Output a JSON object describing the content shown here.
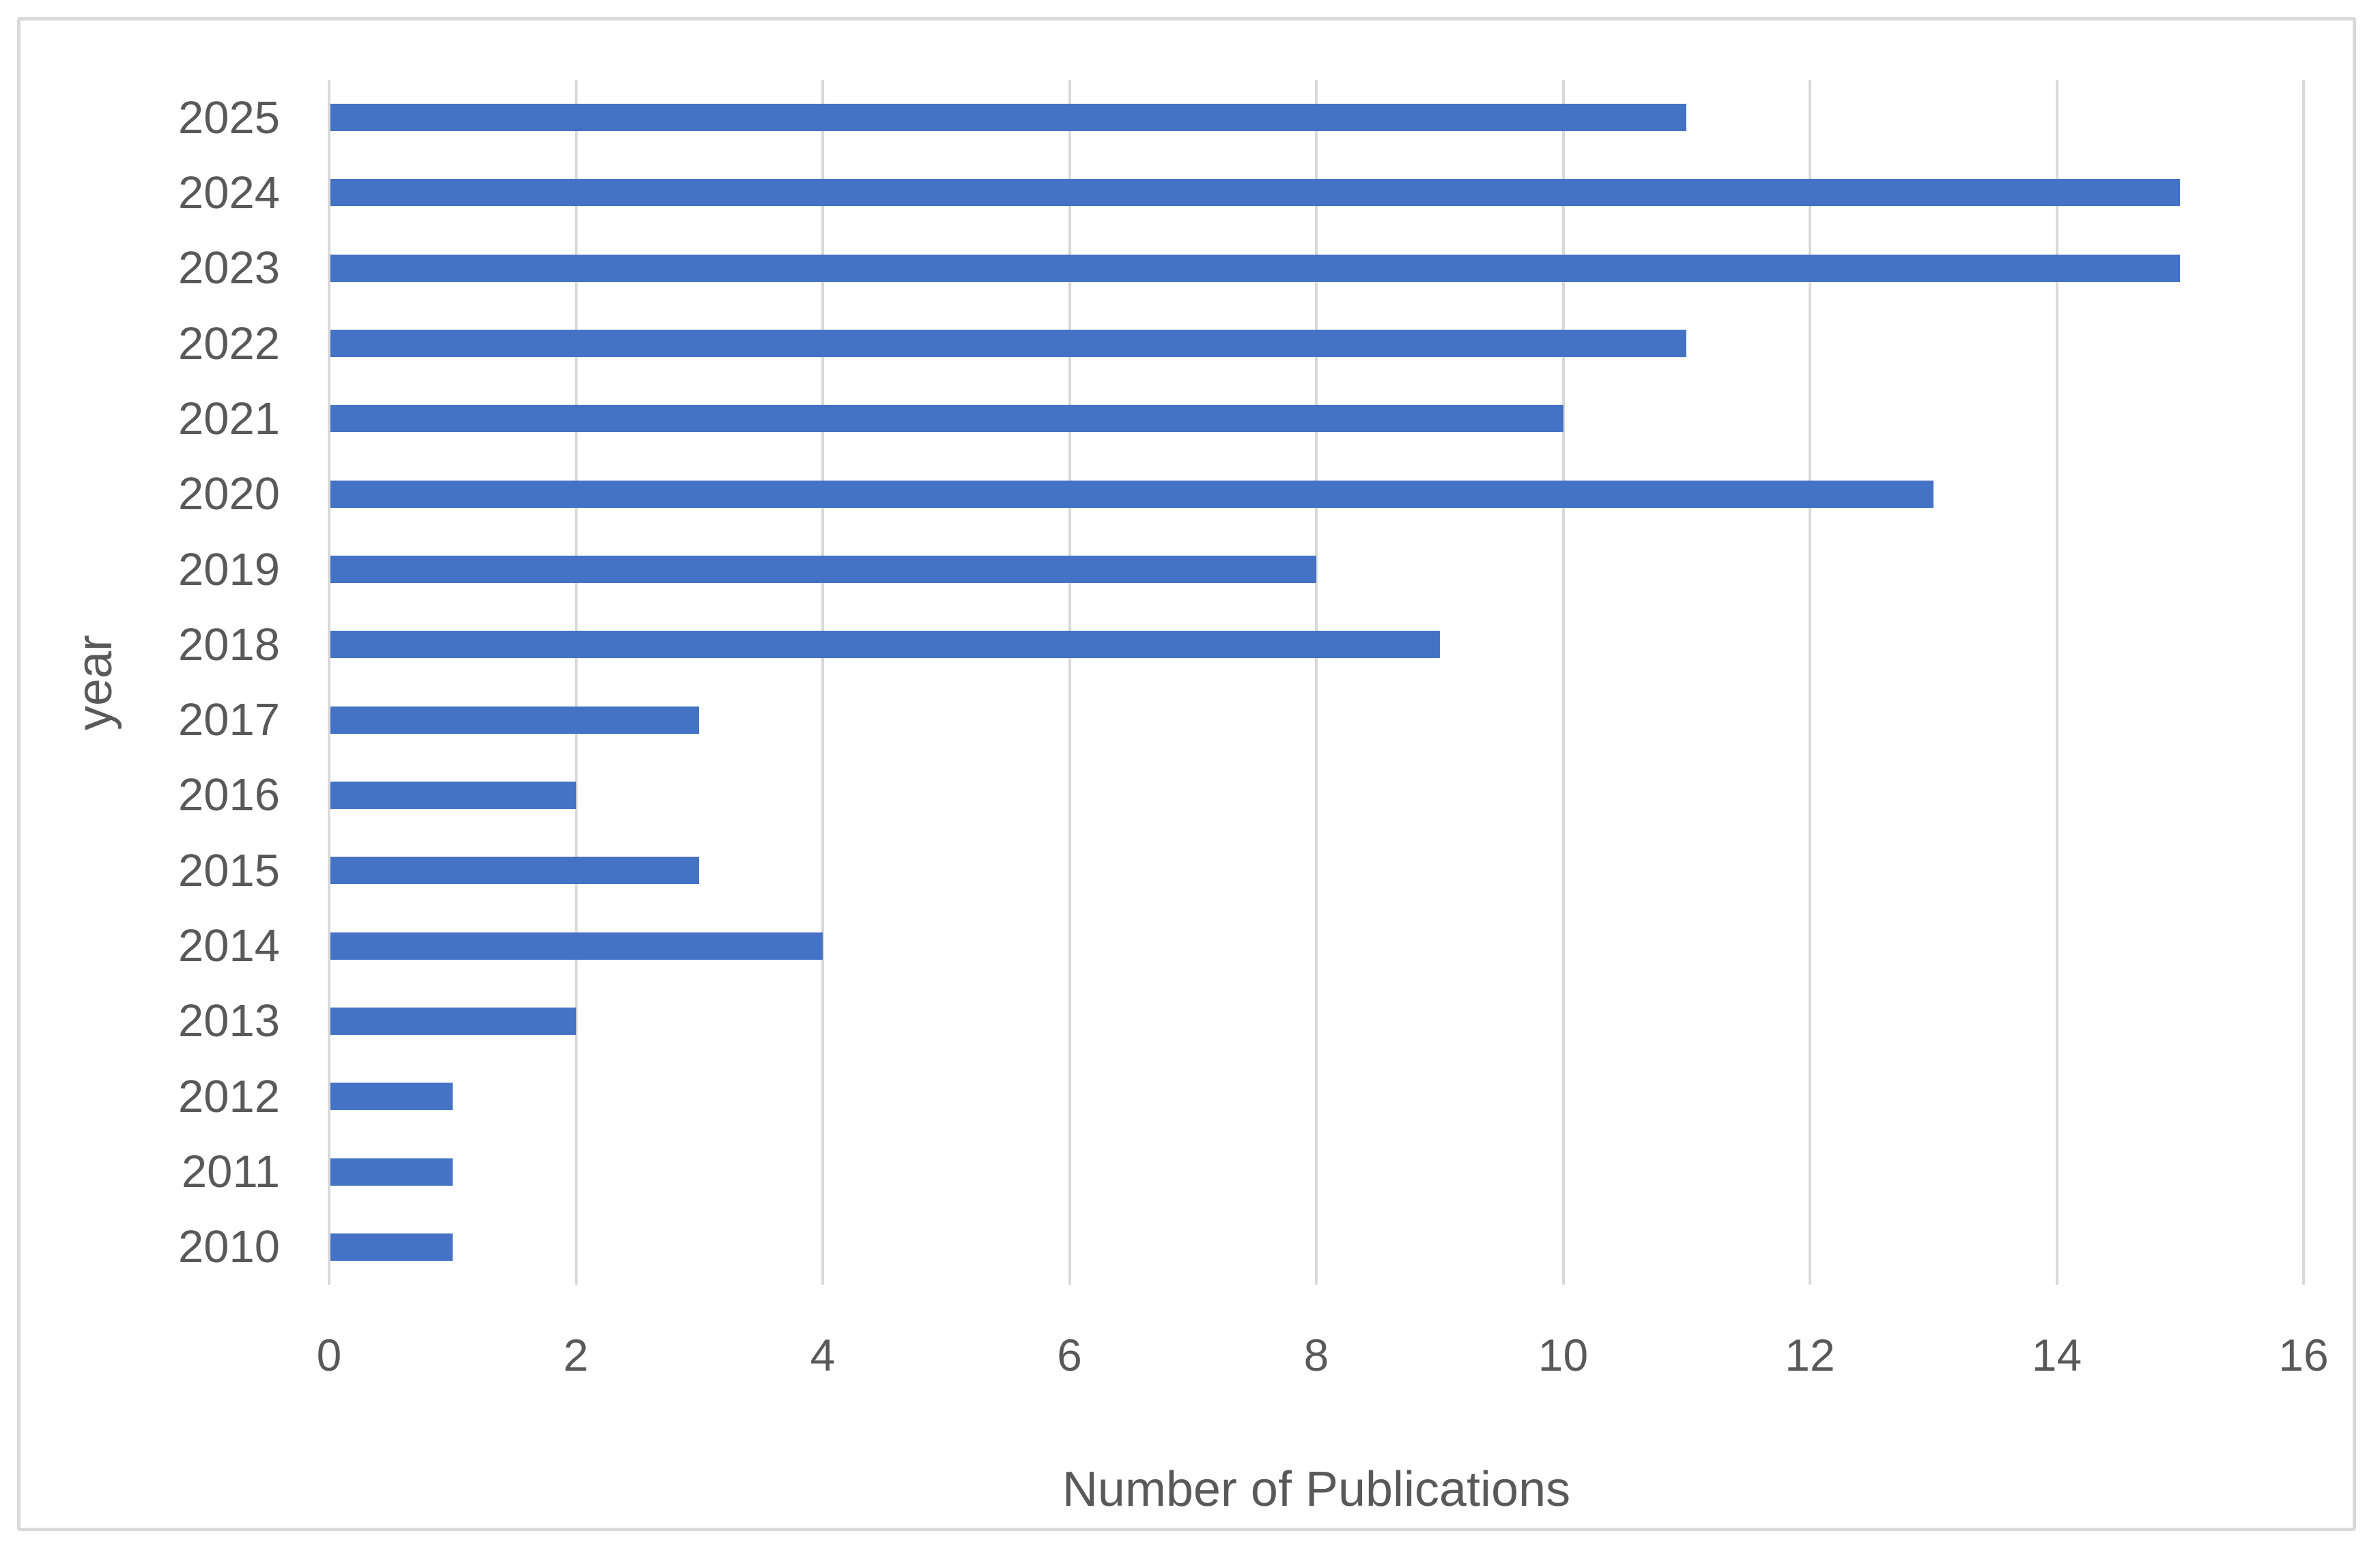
{
  "figure": {
    "background_color": "#ffffff",
    "frame_border_color": "#d9d9d9",
    "text_color": "#595959",
    "gridline_color": "#d9d9d9",
    "bar_color": "#4472c4"
  },
  "chart_data": {
    "type": "bar",
    "orientation": "horizontal",
    "title": "",
    "xlabel": "Number of Publications",
    "ylabel": "year",
    "categories": [
      "2025",
      "2024",
      "2023",
      "2022",
      "2021",
      "2020",
      "2019",
      "2018",
      "2017",
      "2016",
      "2015",
      "2014",
      "2013",
      "2012",
      "2011",
      "2010"
    ],
    "values": [
      11,
      15,
      15,
      11,
      10,
      13,
      8,
      9,
      3,
      2,
      3,
      4,
      2,
      1,
      1,
      1
    ],
    "xlim": [
      0,
      16
    ],
    "x_ticks": [
      0,
      2,
      4,
      6,
      8,
      10,
      12,
      14,
      16
    ],
    "grid": "vertical-major-only",
    "legend": "none",
    "data_labels": "none"
  }
}
